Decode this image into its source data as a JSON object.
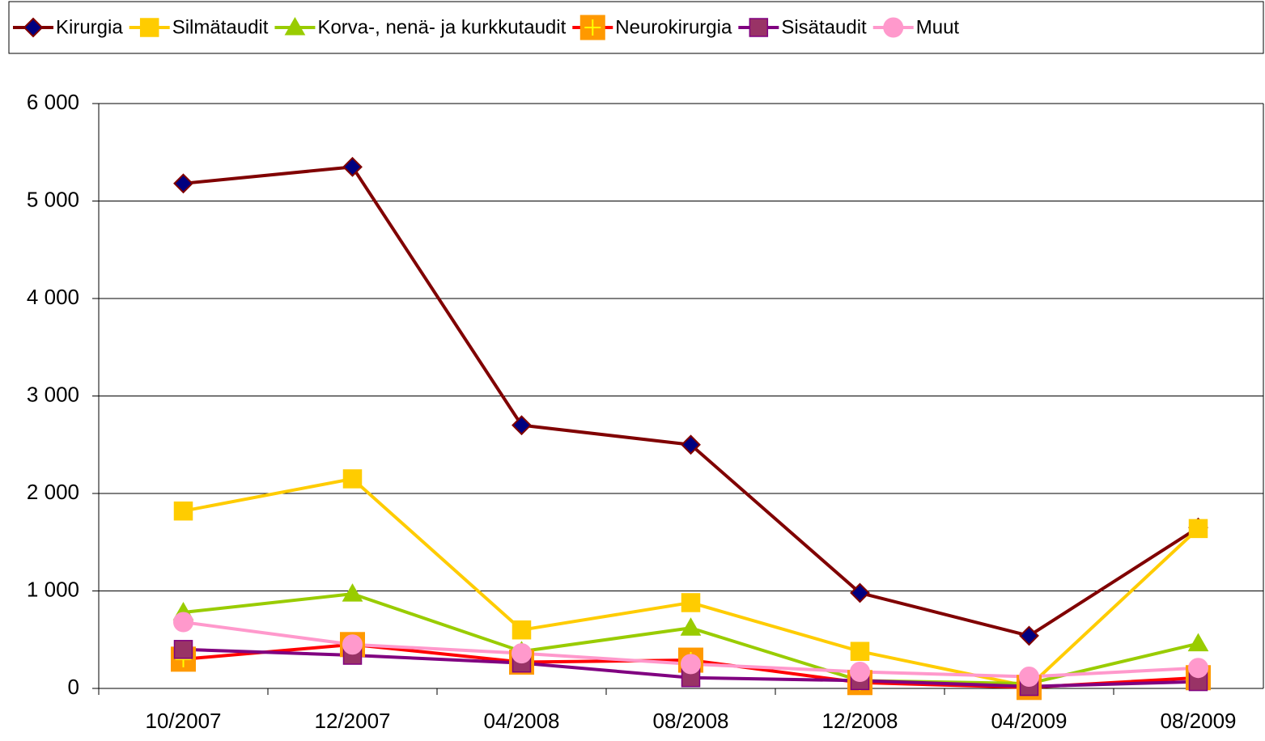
{
  "chart_data": {
    "type": "line",
    "categories": [
      "10/2007",
      "12/2007",
      "04/2008",
      "08/2008",
      "12/2008",
      "04/2009",
      "08/2009"
    ],
    "series": [
      {
        "name": "Kirurgia",
        "color": "#800000",
        "marker_color": "#000080",
        "marker": "diamond",
        "values": [
          5180,
          5350,
          2700,
          2500,
          980,
          540,
          1650
        ]
      },
      {
        "name": "Silmätaudit",
        "color": "#FFCC00",
        "marker_color": "#FFCC00",
        "marker": "square",
        "values": [
          1820,
          2150,
          600,
          880,
          380,
          20,
          1640
        ]
      },
      {
        "name": "Korva-, nenä- ja kurkkutaudit",
        "color": "#99CC00",
        "marker_color": "#99CC00",
        "marker": "triangle",
        "values": [
          780,
          970,
          380,
          620,
          80,
          50,
          460
        ]
      },
      {
        "name": "Neurokirurgia",
        "color": "#FF0000",
        "marker_color": "#FF9900",
        "marker": "plus-square",
        "values": [
          300,
          450,
          270,
          290,
          60,
          10,
          110
        ]
      },
      {
        "name": "Sisätaudit",
        "color": "#800080",
        "marker_color": "#993366",
        "marker": "square",
        "values": [
          400,
          340,
          260,
          110,
          80,
          20,
          70
        ]
      },
      {
        "name": "Muut",
        "color": "#FF99CC",
        "marker_color": "#FF99CC",
        "marker": "circle",
        "values": [
          680,
          450,
          360,
          250,
          170,
          120,
          210
        ]
      }
    ],
    "ylim": [
      0,
      6000
    ],
    "yticks": [
      0,
      {
        "value": 1000,
        "label": "1 000"
      },
      {
        "value": 2000,
        "label": "2 000"
      },
      {
        "value": 3000,
        "label": "3 000"
      },
      {
        "value": 4000,
        "label": "4 000"
      },
      {
        "value": 5000,
        "label": "5 000"
      },
      {
        "value": 6000,
        "label": "6 000"
      }
    ],
    "grid": true,
    "legend": "top"
  }
}
